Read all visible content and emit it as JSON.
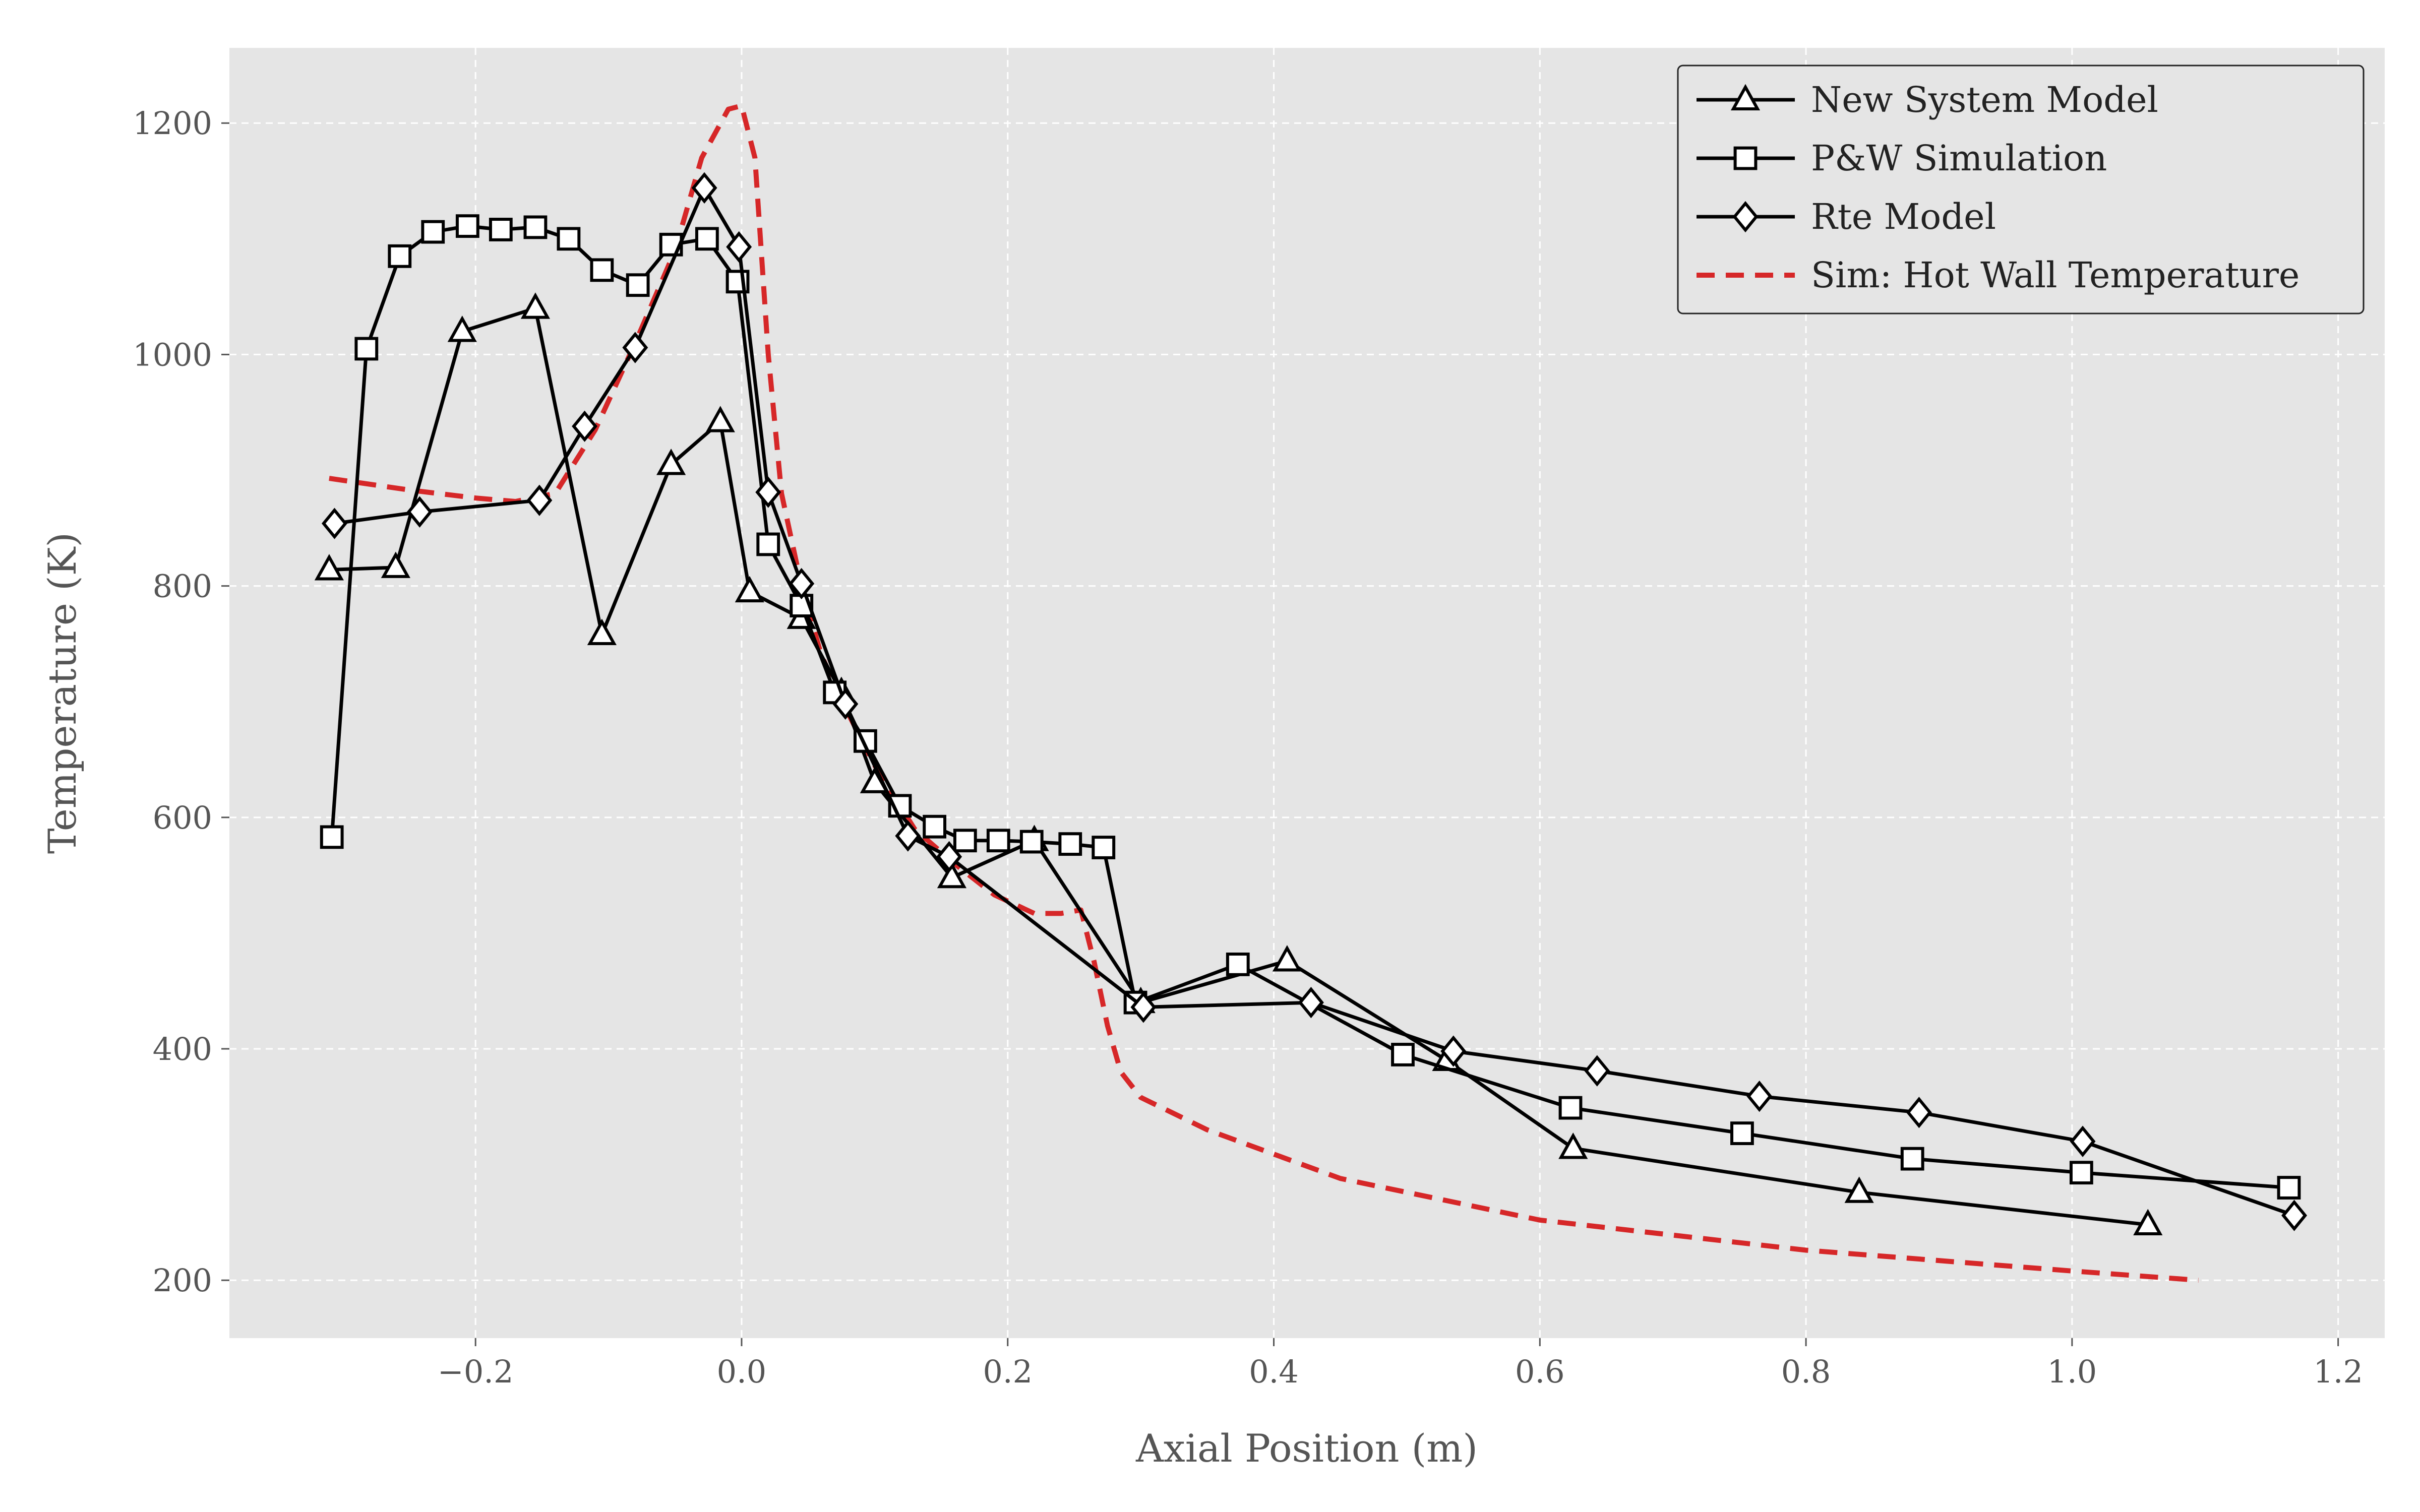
{
  "chart_data": {
    "type": "line",
    "title": "",
    "xlabel": "Axial Position (m)",
    "ylabel": "Temperature (K)",
    "xlim": [
      -0.385,
      1.235
    ],
    "ylim": [
      150,
      1265
    ],
    "xticks": [
      -0.2,
      0.0,
      0.2,
      0.4,
      0.6,
      0.8,
      1.0,
      1.2
    ],
    "xtick_labels": [
      "−0.2",
      "0.0",
      "0.2",
      "0.4",
      "0.6",
      "0.8",
      "1.0",
      "1.2"
    ],
    "yticks": [
      200,
      400,
      600,
      800,
      1000,
      1200
    ],
    "ytick_labels": [
      "200",
      "400",
      "600",
      "800",
      "1000",
      "1200"
    ],
    "grid": true,
    "legend_position": "top-right",
    "series": [
      {
        "name": "New System Model",
        "marker": "triangle",
        "color": "#000000",
        "dash": "solid",
        "x": [
          -0.31,
          -0.26,
          -0.21,
          -0.155,
          -0.105,
          -0.053,
          -0.016,
          0.006,
          0.045,
          0.075,
          0.1,
          0.158,
          0.22,
          0.3,
          0.41,
          0.53,
          0.625,
          0.84,
          1.057
        ],
        "y": [
          814,
          816,
          1020,
          1040,
          758,
          905,
          942,
          795,
          772,
          708,
          630,
          548,
          580,
          440,
          476,
          390,
          314,
          276,
          248
        ]
      },
      {
        "name": "P&W Simulation",
        "marker": "square",
        "color": "#000000",
        "dash": "solid",
        "x": [
          -0.308,
          -0.282,
          -0.257,
          -0.232,
          -0.206,
          -0.181,
          -0.155,
          -0.13,
          -0.105,
          -0.078,
          -0.053,
          -0.026,
          -0.003,
          0.02,
          0.045,
          0.07,
          0.093,
          0.119,
          0.145,
          0.168,
          0.193,
          0.218,
          0.247,
          0.272,
          0.296,
          0.373,
          0.497,
          0.623,
          0.752,
          0.88,
          1.007,
          1.163
        ],
        "y": [
          583,
          1005,
          1085,
          1106,
          1111,
          1108,
          1110,
          1100,
          1073,
          1060,
          1095,
          1100,
          1063,
          836,
          783,
          708,
          666,
          610,
          592,
          580,
          580,
          579,
          577,
          574,
          440,
          473,
          395,
          349,
          327,
          305,
          293,
          280
        ]
      },
      {
        "name": "Rte Model",
        "marker": "diamond",
        "color": "#000000",
        "dash": "solid",
        "x": [
          -0.306,
          -0.242,
          -0.152,
          -0.118,
          -0.08,
          -0.028,
          -0.002,
          0.02,
          0.045,
          0.078,
          0.125,
          0.156,
          0.302,
          0.428,
          0.535,
          0.643,
          0.765,
          0.885,
          1.008,
          1.167
        ],
        "y": [
          854,
          864,
          874,
          938,
          1006,
          1144,
          1093,
          881,
          802,
          698,
          584,
          566,
          436,
          440,
          398,
          381,
          359,
          345,
          320,
          256
        ]
      },
      {
        "name": "Sim: Hot Wall Temperature",
        "marker": "none",
        "color": "#d62728",
        "dash": "dashed",
        "x": [
          -0.31,
          -0.25,
          -0.2,
          -0.17,
          -0.14,
          -0.11,
          -0.08,
          -0.05,
          -0.03,
          -0.01,
          0.0,
          0.01,
          0.02,
          0.03,
          0.045,
          0.06,
          0.08,
          0.1,
          0.13,
          0.16,
          0.19,
          0.22,
          0.24,
          0.255,
          0.265,
          0.275,
          0.285,
          0.3,
          0.35,
          0.45,
          0.6,
          0.8,
          1.0,
          1.095
        ],
        "y": [
          893,
          883,
          876,
          873,
          880,
          935,
          1010,
          1090,
          1170,
          1212,
          1215,
          1170,
          1000,
          880,
          800,
          740,
          690,
          645,
          590,
          560,
          533,
          517,
          517,
          520,
          475,
          420,
          380,
          358,
          330,
          288,
          252,
          226,
          208,
          200
        ]
      }
    ]
  }
}
